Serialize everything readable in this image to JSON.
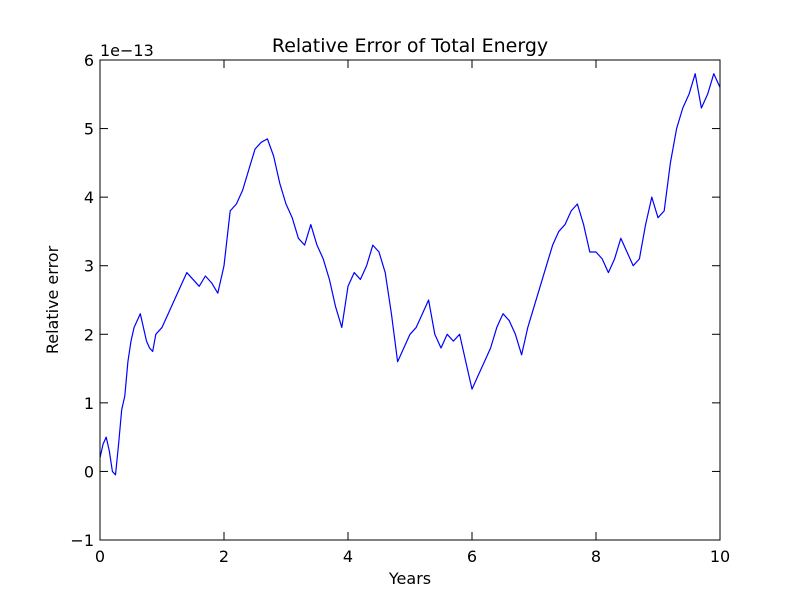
{
  "chart_data": {
    "type": "line",
    "title": "Relative Error of Total Energy",
    "xlabel": "Years",
    "ylabel": "Relative error",
    "y_offset_label": "1e−13",
    "xlim": [
      0,
      10
    ],
    "ylim": [
      -1,
      6
    ],
    "xticks": [
      0,
      2,
      4,
      6,
      8,
      10
    ],
    "xtick_labels": [
      "0",
      "2",
      "4",
      "6",
      "8",
      "10"
    ],
    "yticks": [
      -1,
      0,
      1,
      2,
      3,
      4,
      5,
      6
    ],
    "ytick_labels": [
      "−1",
      "0",
      "1",
      "2",
      "3",
      "4",
      "5",
      "6"
    ],
    "grid": false,
    "series": [
      {
        "color": "#0000ff",
        "x": [
          0.0,
          0.05,
          0.1,
          0.15,
          0.2,
          0.25,
          0.3,
          0.35,
          0.4,
          0.45,
          0.5,
          0.55,
          0.6,
          0.65,
          0.7,
          0.75,
          0.8,
          0.85,
          0.9,
          1.0,
          1.1,
          1.2,
          1.3,
          1.4,
          1.5,
          1.6,
          1.7,
          1.8,
          1.9,
          2.0,
          2.1,
          2.2,
          2.3,
          2.4,
          2.5,
          2.6,
          2.7,
          2.8,
          2.9,
          3.0,
          3.1,
          3.2,
          3.3,
          3.4,
          3.5,
          3.6,
          3.7,
          3.8,
          3.9,
          4.0,
          4.1,
          4.2,
          4.3,
          4.4,
          4.5,
          4.6,
          4.7,
          4.8,
          4.9,
          5.0,
          5.1,
          5.2,
          5.3,
          5.4,
          5.5,
          5.6,
          5.7,
          5.8,
          5.9,
          6.0,
          6.1,
          6.2,
          6.3,
          6.4,
          6.5,
          6.6,
          6.7,
          6.8,
          6.9,
          7.0,
          7.1,
          7.2,
          7.3,
          7.4,
          7.5,
          7.6,
          7.7,
          7.8,
          7.9,
          8.0,
          8.1,
          8.2,
          8.3,
          8.4,
          8.5,
          8.6,
          8.7,
          8.8,
          8.9,
          9.0,
          9.1,
          9.2,
          9.3,
          9.4,
          9.5,
          9.6,
          9.7,
          9.8,
          9.9,
          10.0
        ],
        "y": [
          0.2,
          0.4,
          0.5,
          0.3,
          0.0,
          -0.05,
          0.4,
          0.9,
          1.1,
          1.6,
          1.9,
          2.1,
          2.2,
          2.3,
          2.1,
          1.9,
          1.8,
          1.75,
          2.0,
          2.1,
          2.3,
          2.5,
          2.7,
          2.9,
          2.8,
          2.7,
          2.85,
          2.75,
          2.6,
          3.0,
          3.8,
          3.9,
          4.1,
          4.4,
          4.7,
          4.8,
          4.85,
          4.6,
          4.2,
          3.9,
          3.7,
          3.4,
          3.3,
          3.6,
          3.3,
          3.1,
          2.8,
          2.4,
          2.1,
          2.7,
          2.9,
          2.8,
          3.0,
          3.3,
          3.2,
          2.9,
          2.3,
          1.6,
          1.8,
          2.0,
          2.1,
          2.3,
          2.5,
          2.0,
          1.8,
          2.0,
          1.9,
          2.0,
          1.6,
          1.2,
          1.4,
          1.6,
          1.8,
          2.1,
          2.3,
          2.2,
          2.0,
          1.7,
          2.1,
          2.4,
          2.7,
          3.0,
          3.3,
          3.5,
          3.6,
          3.8,
          3.9,
          3.6,
          3.2,
          3.2,
          3.1,
          2.9,
          3.1,
          3.4,
          3.2,
          3.0,
          3.1,
          3.6,
          4.0,
          3.7,
          3.8,
          4.5,
          5.0,
          5.3,
          5.5,
          5.8,
          5.3,
          5.5,
          5.8,
          5.6
        ]
      }
    ]
  }
}
